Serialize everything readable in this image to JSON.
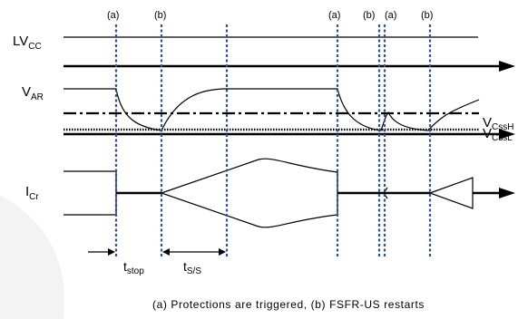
{
  "event_markers": [
    "(a)",
    "(b)",
    "(a)",
    "(b)",
    "(a)",
    "(b)"
  ],
  "signals": {
    "lvcc": {
      "main": "LV",
      "sub": "CC"
    },
    "var": {
      "main": "V",
      "sub": "AR"
    },
    "icr": {
      "main": "I",
      "sub": "Cr"
    }
  },
  "thresholds": {
    "high": {
      "main": "V",
      "sub": "CssH"
    },
    "low": {
      "main": "V",
      "sub": "CssL"
    }
  },
  "intervals": {
    "stop": {
      "main": "t",
      "sub": "stop"
    },
    "ss": {
      "main": "t",
      "sub": "S/S"
    }
  },
  "caption": "(a) Protections are triggered, (b) FSFR-US restarts",
  "colors": {
    "marker_line": "#2f5597",
    "trace": "#000000",
    "background_arc": "#f2f2f2"
  }
}
